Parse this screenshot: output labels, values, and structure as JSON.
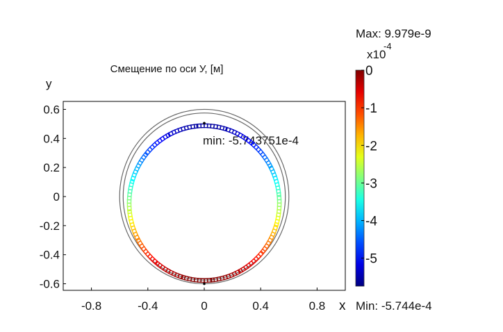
{
  "chart_data": {
    "type": "surface-colormap",
    "title": "Смещение по оси У,  [м]",
    "xlabel": "x",
    "ylabel": "y",
    "xlim": [
      -1.0,
      1.0
    ],
    "ylim": [
      -0.65,
      0.65
    ],
    "xticks": [
      -0.8,
      -0.4,
      0,
      0.4,
      0.8
    ],
    "xtick_labels": [
      "-0.8",
      "-0.4",
      "0",
      "0.4",
      "0.8"
    ],
    "yticks": [
      0.6,
      0.4,
      0.2,
      0,
      -0.2,
      -0.4,
      -0.6
    ],
    "ytick_labels": [
      "0.6",
      "0.4",
      "0.2",
      "0",
      "-0.2",
      "-0.4",
      "-0.6"
    ],
    "annotation": "min: -5.743751e-4",
    "colorbar": {
      "max_label": "Max: 9.979e-9",
      "min_label": "Min: -5.744e-4",
      "scale_base": "x10",
      "scale_exp": "-4",
      "ticks": [
        0,
        -1,
        -2,
        -3,
        -4,
        -5
      ],
      "tick_labels": [
        "0",
        "-1",
        "-2",
        "-3",
        "-4",
        "-5"
      ],
      "range": [
        -5.744,
        0.0001
      ],
      "colormap": "jet"
    },
    "geometry": {
      "outer_rings": [
        {
          "cx": 0.0,
          "cy": 0.0,
          "r": 0.6
        },
        {
          "cx": 0.0,
          "cy": 0.0,
          "r": 0.575
        }
      ],
      "inner_rings": [
        {
          "cx": 0.0,
          "cy": -0.045,
          "r": 0.545
        },
        {
          "cx": 0.0,
          "cy": -0.045,
          "r": 0.52
        }
      ]
    }
  }
}
